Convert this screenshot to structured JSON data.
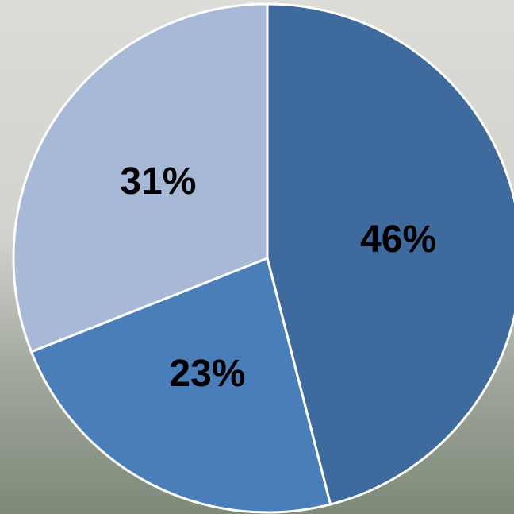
{
  "chart_data": {
    "type": "pie",
    "values": [
      46,
      23,
      31
    ],
    "value_labels": [
      "46%",
      "23%",
      "31%"
    ],
    "colors": [
      "#3e6a9d",
      "#4a7eb9",
      "#a8b9d8"
    ]
  }
}
